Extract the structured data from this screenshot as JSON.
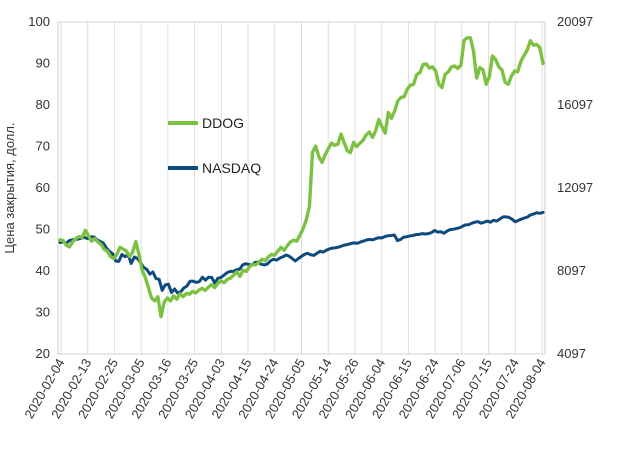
{
  "chart_data": {
    "type": "line",
    "title": "",
    "ylabel": "Цена закрытия, долл.",
    "xlabel": "",
    "ylim": [
      20,
      100
    ],
    "y2lim": [
      4097,
      20097
    ],
    "yticks": [
      "20",
      "30",
      "40",
      "50",
      "60",
      "70",
      "80",
      "90",
      "100"
    ],
    "y2ticks": [
      "4097",
      "8097",
      "12097",
      "16097",
      "20097"
    ],
    "xticks": [
      "2020-02-04",
      "2020-02-13",
      "2020-02-25",
      "2020-03-05",
      "2020-03-16",
      "2020-03-25",
      "2020-04-03",
      "2020-04-15",
      "2020-04-24",
      "2020-05-05",
      "2020-05-14",
      "2020-05-26",
      "2020-06-04",
      "2020-06-15",
      "2020-06-24",
      "2020-07-06",
      "2020-07-15",
      "2020-07-24",
      "2020-08-04"
    ],
    "grid": "vertical",
    "legend_position": "center-left",
    "series": [
      {
        "name": "DDOG",
        "axis": "left",
        "color": "#7dc142",
        "values": [
          47.5,
          47.3,
          46.2,
          45.8,
          47.0,
          47.8,
          48.3,
          48.1,
          49.8,
          48.5,
          47.2,
          47.8,
          47.0,
          46.4,
          45.2,
          44.8,
          43.5,
          43.0,
          44.0,
          45.7,
          45.3,
          44.8,
          43.5,
          44.5,
          47.1,
          44.0,
          40.2,
          38.5,
          36.0,
          33.5,
          32.8,
          33.8,
          29.0,
          32.5,
          33.5,
          32.8,
          34.0,
          33.2,
          34.5,
          33.8,
          34.6,
          34.4,
          35.1,
          34.7,
          35.4,
          35.8,
          35.3,
          36.1,
          36.7,
          36.0,
          37.0,
          37.6,
          37.2,
          38.0,
          38.3,
          39.0,
          39.8,
          38.7,
          40.2,
          39.9,
          41.0,
          41.6,
          41.5,
          42.1,
          42.8,
          42.5,
          43.4,
          44.0,
          43.8,
          44.8,
          45.7,
          45.0,
          46.1,
          47.0,
          47.4,
          47.2,
          48.6,
          50.2,
          52.3,
          55.5,
          68.6,
          70.1,
          67.5,
          66.2,
          68.0,
          69.5,
          70.8,
          70.3,
          70.5,
          73.0,
          71.0,
          69.0,
          68.5,
          71.0,
          70.0,
          70.8,
          71.5,
          72.8,
          73.5,
          72.2,
          73.8,
          76.5,
          74.8,
          73.2,
          78.2,
          76.8,
          78.5,
          81.0,
          81.8,
          82.0,
          83.8,
          84.8,
          85.0,
          87.3,
          87.8,
          89.7,
          89.9,
          88.9,
          89.2,
          88.2,
          85.0,
          84.2,
          87.4,
          88.0,
          89.2,
          89.4,
          88.8,
          89.6,
          95.6,
          96.2,
          96.2,
          93.0,
          86.5,
          89.0,
          88.5,
          85.0,
          86.8,
          91.8,
          91.0,
          89.2,
          88.4,
          85.5,
          85.0,
          87.0,
          88.2,
          88.0,
          90.5,
          92.0,
          93.2,
          95.5,
          94.4,
          94.6,
          93.8,
          90.0
        ]
      },
      {
        "name": "NASDAQ",
        "axis": "right",
        "color": "#0d4a7e",
        "values": [
          9470,
          9510,
          9430,
          9560,
          9600,
          9620,
          9640,
          9690,
          9710,
          9650,
          9750,
          9730,
          9590,
          9520,
          9440,
          9200,
          9040,
          8930,
          8580,
          8560,
          8890,
          8790,
          8880,
          8460,
          8770,
          8700,
          8500,
          8270,
          8180,
          7950,
          8050,
          7730,
          7700,
          7160,
          7430,
          7460,
          7060,
          7230,
          7030,
          7100,
          7280,
          7370,
          7600,
          7610,
          7550,
          7580,
          7800,
          7660,
          7800,
          7790,
          7510,
          7750,
          7790,
          7900,
          8020,
          8080,
          8080,
          8160,
          8180,
          8390,
          8450,
          8410,
          8380,
          8510,
          8520,
          8420,
          8390,
          8440,
          8590,
          8660,
          8620,
          8720,
          8780,
          8870,
          8810,
          8700,
          8580,
          8700,
          8800,
          8900,
          8950,
          8880,
          8850,
          8950,
          9050,
          9010,
          9100,
          9160,
          9200,
          9220,
          9250,
          9300,
          9350,
          9380,
          9420,
          9450,
          9430,
          9490,
          9540,
          9590,
          9620,
          9600,
          9660,
          9700,
          9690,
          9760,
          9800,
          9810,
          9830,
          9560,
          9620,
          9730,
          9750,
          9790,
          9810,
          9850,
          9860,
          9900,
          9880,
          9900,
          9950,
          10050,
          9970,
          9990,
          9920,
          10020,
          10090,
          10110,
          10140,
          10180,
          10250,
          10320,
          10330,
          10400,
          10450,
          10480,
          10400,
          10450,
          10500,
          10450,
          10540,
          10500,
          10600,
          10700,
          10710,
          10680,
          10600,
          10470,
          10530,
          10600,
          10650,
          10700,
          10800,
          10850,
          10900,
          10880,
          10920
        ]
      }
    ]
  }
}
